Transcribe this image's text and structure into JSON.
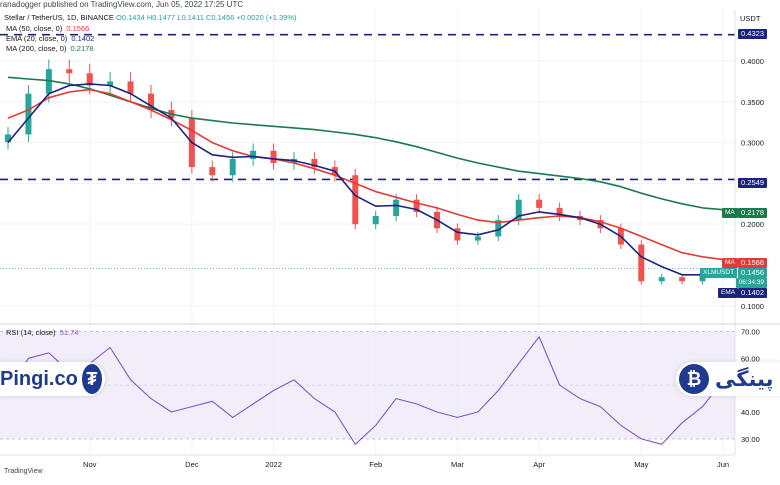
{
  "header": {
    "text": "ranadogger published on TradingView.com, Jun 05, 2022 17:25 UTC"
  },
  "ohlc": {
    "symbol": "Stellar / TetherUS, 1D, BINANCE",
    "o": "O0.1434",
    "h": "H0.1477",
    "l": "L0.1411",
    "c": "C0.1456",
    "chg": "+0.0020 (+1.39%)"
  },
  "legend": [
    {
      "label": "MA (50, close, 0)",
      "value": "0.1566",
      "color": "#e53935"
    },
    {
      "label": "EMA (20, close, 0)",
      "value": "0.1402",
      "color": "#1a237e"
    },
    {
      "label": "MA (200, close, 0)",
      "value": "0.2178",
      "color": "#1b7a4a"
    }
  ],
  "price_axis": {
    "unit": "USDT",
    "ticks": [
      "0.4000",
      "0.3500",
      "0.3000",
      "0.2500",
      "0.2000",
      "0.1500",
      "0.1000"
    ]
  },
  "tags": {
    "level_high": "0.4323",
    "level_mid": "0.2549",
    "ma200_val": "0.2178",
    "ma200_lbl": "MA",
    "ma50_val": "0.1566",
    "ma50_lbl": "MA",
    "symbol_tag": "XLMUSDT",
    "price_val": "0.1456",
    "countdown": "06:34:39",
    "ema_val": "0.1402",
    "ema_lbl": "EMA"
  },
  "rsi": {
    "label": "RSI (14, close)",
    "value": "51.74",
    "ticks": [
      "70.00",
      "60.00",
      "50.00",
      "40.00",
      "30.00"
    ]
  },
  "x_axis": {
    "labels": [
      "Nov",
      "Dec",
      "2022",
      "Feb",
      "Mar",
      "Apr",
      "May",
      "Jun"
    ]
  },
  "branding": {
    "left_text": "Pingi.co",
    "right_text": "پینگی",
    "tv": "TradingView"
  },
  "colors": {
    "up": "#26a69a",
    "down": "#ef5350",
    "ma50": "#e53935",
    "ema20": "#1a237e",
    "ma200": "#1b7a4a",
    "rsi_line": "#7e57c2",
    "rsi_band": "#ede7f6",
    "dash": "#1a237e"
  },
  "chart_data": [
    {
      "type": "line",
      "title": "Stellar / TetherUS, 1D, BINANCE",
      "xlabel": "",
      "ylabel": "USDT",
      "x_ticks": [
        "Nov",
        "Dec",
        "2022",
        "Feb",
        "Mar",
        "Apr",
        "May",
        "Jun"
      ],
      "ylim": [
        0.085,
        0.465
      ],
      "scale": "linear",
      "horizontal_levels": [
        0.4323,
        0.2549
      ],
      "x": [
        "Oct 1",
        "Oct 8",
        "Oct 15",
        "Oct 22",
        "Oct 29",
        "Nov 5",
        "Nov 12",
        "Nov 19",
        "Nov 26",
        "Dec 3",
        "Dec 10",
        "Dec 17",
        "Dec 24",
        "Dec 31",
        "Jan 7",
        "Jan 14",
        "Jan 21",
        "Jan 28",
        "Feb 4",
        "Feb 11",
        "Feb 18",
        "Feb 25",
        "Mar 4",
        "Mar 11",
        "Mar 18",
        "Mar 25",
        "Apr 1",
        "Apr 8",
        "Apr 15",
        "Apr 22",
        "Apr 29",
        "May 6",
        "May 13",
        "May 20",
        "May 27",
        "Jun 3"
      ],
      "series": [
        {
          "name": "Price (close)",
          "values": [
            0.31,
            0.36,
            0.39,
            0.385,
            0.37,
            0.375,
            0.36,
            0.34,
            0.33,
            0.27,
            0.26,
            0.28,
            0.29,
            0.275,
            0.28,
            0.27,
            0.26,
            0.2,
            0.21,
            0.23,
            0.215,
            0.195,
            0.18,
            0.185,
            0.205,
            0.23,
            0.22,
            0.21,
            0.205,
            0.195,
            0.175,
            0.13,
            0.135,
            0.13,
            0.14,
            0.1456
          ]
        },
        {
          "name": "MA (50, close, 0)",
          "values": [
            0.33,
            0.34,
            0.355,
            0.362,
            0.365,
            0.36,
            0.35,
            0.34,
            0.328,
            0.315,
            0.3,
            0.29,
            0.283,
            0.28,
            0.275,
            0.268,
            0.26,
            0.25,
            0.24,
            0.233,
            0.226,
            0.22,
            0.212,
            0.205,
            0.202,
            0.205,
            0.208,
            0.21,
            0.208,
            0.203,
            0.195,
            0.185,
            0.175,
            0.165,
            0.16,
            0.1566
          ]
        },
        {
          "name": "EMA (20, close, 0)",
          "values": [
            0.3,
            0.33,
            0.36,
            0.37,
            0.372,
            0.37,
            0.36,
            0.345,
            0.33,
            0.3,
            0.285,
            0.282,
            0.283,
            0.28,
            0.278,
            0.272,
            0.265,
            0.235,
            0.222,
            0.223,
            0.218,
            0.205,
            0.19,
            0.187,
            0.193,
            0.21,
            0.215,
            0.212,
            0.208,
            0.2,
            0.185,
            0.16,
            0.148,
            0.138,
            0.138,
            0.1402
          ]
        },
        {
          "name": "MA (200, close, 0)",
          "values": [
            0.38,
            0.378,
            0.376,
            0.372,
            0.366,
            0.358,
            0.35,
            0.342,
            0.335,
            0.33,
            0.327,
            0.324,
            0.322,
            0.32,
            0.318,
            0.316,
            0.313,
            0.31,
            0.306,
            0.301,
            0.295,
            0.288,
            0.281,
            0.275,
            0.27,
            0.265,
            0.262,
            0.259,
            0.256,
            0.252,
            0.246,
            0.238,
            0.231,
            0.225,
            0.22,
            0.2178
          ]
        }
      ]
    },
    {
      "type": "line",
      "title": "RSI (14, close)",
      "xlabel": "",
      "ylabel": "",
      "x_ticks": [
        "Nov",
        "Dec",
        "2022",
        "Feb",
        "Mar",
        "Apr",
        "May",
        "Jun"
      ],
      "ylim": [
        24,
        72
      ],
      "horizontal_levels": [
        70,
        30
      ],
      "x": [
        "Oct 1",
        "Oct 8",
        "Oct 15",
        "Oct 22",
        "Oct 29",
        "Nov 5",
        "Nov 12",
        "Nov 19",
        "Nov 26",
        "Dec 3",
        "Dec 10",
        "Dec 17",
        "Dec 24",
        "Dec 31",
        "Jan 7",
        "Jan 14",
        "Jan 21",
        "Jan 28",
        "Feb 4",
        "Feb 11",
        "Feb 18",
        "Feb 25",
        "Mar 4",
        "Mar 11",
        "Mar 18",
        "Mar 25",
        "Apr 1",
        "Apr 8",
        "Apr 15",
        "Apr 22",
        "Apr 29",
        "May 6",
        "May 13",
        "May 20",
        "May 27",
        "Jun 3"
      ],
      "series": [
        {
          "name": "RSI (14, close)",
          "values": [
            48,
            60,
            62,
            55,
            58,
            64,
            52,
            45,
            40,
            42,
            44,
            38,
            43,
            48,
            52,
            45,
            40,
            28,
            35,
            45,
            43,
            40,
            38,
            40,
            48,
            58,
            68,
            50,
            45,
            42,
            35,
            30,
            28,
            36,
            42,
            51.74
          ]
        }
      ]
    }
  ]
}
